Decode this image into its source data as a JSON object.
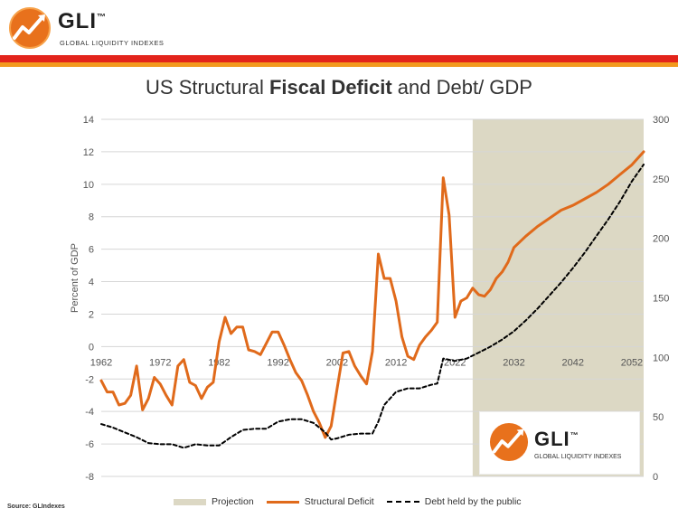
{
  "header": {
    "logo_text": "GLI",
    "logo_tm": "™",
    "logo_subtitle": "GLOBAL LIQUIDITY INDEXES"
  },
  "colors": {
    "brand_red": "#e3241b",
    "brand_orange": "#f39a1e",
    "deficit_line": "#e06a1b",
    "debt_line": "#000000",
    "projection_fill": "#dcd8c4"
  },
  "chart_data": {
    "type": "line",
    "title_prefix": "US Structural ",
    "title_bold": "Fiscal Deficit",
    "title_suffix": " and Debt/ GDP",
    "ylabel": "Percent of GDP",
    "ylim": [
      -8,
      14
    ],
    "y_ticks": [
      "14",
      "12",
      "10",
      "8",
      "6",
      "4",
      "2",
      "0",
      "-2",
      "-4",
      "-6",
      "-8"
    ],
    "y2lim": [
      0,
      300
    ],
    "y2_ticks": [
      "300",
      "250",
      "200",
      "150",
      "100",
      "50",
      "0"
    ],
    "xlim": [
      1962,
      2054
    ],
    "x_ticks": [
      "1962",
      "1972",
      "1982",
      "1992",
      "2002",
      "2012",
      "2022",
      "2032",
      "2042",
      "2052"
    ],
    "projection_start": 2025,
    "projection_end": 2054,
    "legend": [
      "Projection",
      "Structural Deficit",
      "Debt held by the public"
    ],
    "series": [
      {
        "name": "Structural Deficit",
        "axis": "left",
        "x": [
          1962,
          1963,
          1964,
          1965,
          1966,
          1967,
          1968,
          1969,
          1970,
          1971,
          1972,
          1973,
          1974,
          1975,
          1976,
          1977,
          1978,
          1979,
          1980,
          1981,
          1982,
          1983,
          1984,
          1985,
          1986,
          1987,
          1988,
          1989,
          1990,
          1991,
          1992,
          1993,
          1994,
          1995,
          1996,
          1997,
          1998,
          1999,
          2000,
          2001,
          2002,
          2003,
          2004,
          2005,
          2006,
          2007,
          2008,
          2009,
          2010,
          2011,
          2012,
          2013,
          2014,
          2015,
          2016,
          2017,
          2018,
          2019,
          2020,
          2021,
          2022,
          2023,
          2024,
          2025,
          2026,
          2027,
          2028,
          2029,
          2030,
          2031,
          2032,
          2034,
          2036,
          2038,
          2040,
          2042,
          2044,
          2046,
          2048,
          2050,
          2052,
          2054
        ],
        "values": [
          -2.1,
          -2.8,
          -2.8,
          -3.6,
          -3.5,
          -3.0,
          -1.2,
          -3.9,
          -3.2,
          -1.9,
          -2.3,
          -3.0,
          -3.6,
          -1.2,
          -0.8,
          -2.2,
          -2.4,
          -3.2,
          -2.5,
          -2.2,
          0.3,
          1.8,
          0.8,
          1.2,
          1.2,
          -0.2,
          -0.3,
          -0.5,
          0.2,
          0.9,
          0.9,
          0.1,
          -0.8,
          -1.6,
          -2.1,
          -3.0,
          -4.0,
          -4.7,
          -5.6,
          -4.9,
          -2.6,
          -0.4,
          -0.3,
          -1.2,
          -1.8,
          -2.3,
          -0.3,
          5.7,
          4.2,
          4.2,
          2.8,
          0.6,
          -0.6,
          -0.8,
          0.1,
          0.6,
          1.0,
          1.5,
          10.4,
          8.1,
          1.8,
          2.8,
          3.0,
          3.6,
          3.2,
          3.1,
          3.5,
          4.2,
          4.6,
          5.2,
          6.1,
          6.8,
          7.4,
          7.9,
          8.4,
          8.7,
          9.1,
          9.5,
          10.0,
          10.6,
          11.2,
          12.0
        ]
      },
      {
        "name": "Debt held by the public",
        "axis": "right",
        "x": [
          1962,
          1964,
          1966,
          1968,
          1970,
          1972,
          1974,
          1976,
          1978,
          1980,
          1982,
          1984,
          1986,
          1988,
          1990,
          1992,
          1994,
          1996,
          1998,
          2000,
          2001,
          2002,
          2004,
          2006,
          2008,
          2009,
          2010,
          2012,
          2014,
          2016,
          2018,
          2019,
          2020,
          2022,
          2024,
          2026,
          2028,
          2030,
          2032,
          2034,
          2036,
          2038,
          2040,
          2042,
          2044,
          2046,
          2048,
          2050,
          2052,
          2054
        ],
        "values": [
          44,
          41,
          37,
          33,
          28,
          27,
          27,
          24,
          27,
          26,
          26,
          33,
          39,
          40,
          40,
          46,
          48,
          48,
          45,
          37,
          31,
          32,
          35,
          36,
          36,
          46,
          60,
          71,
          74,
          74,
          77,
          78,
          99,
          97,
          99,
          104,
          109,
          115,
          122,
          131,
          141,
          152,
          163,
          175,
          188,
          202,
          216,
          231,
          248,
          262
        ]
      }
    ]
  },
  "watermark": {
    "logo_text": "GLI",
    "logo_tm": "™",
    "logo_subtitle": "GLOBAL LIQUIDITY INDEXES"
  },
  "source": "Source: GLIndexes"
}
